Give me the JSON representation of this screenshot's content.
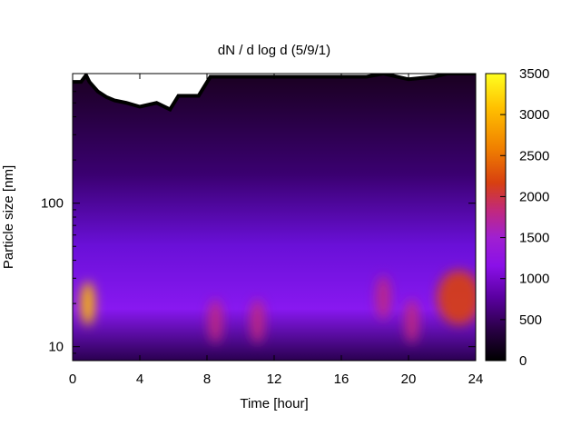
{
  "chart_data": {
    "type": "heatmap",
    "title": "dN / d log d (5/9/1)",
    "xlabel": "Time [hour]",
    "ylabel": "Particle size [nm]",
    "xlim": [
      0,
      24
    ],
    "ylim": [
      8,
      800
    ],
    "yscale": "log",
    "xticks": [
      0,
      4,
      8,
      12,
      16,
      20,
      24
    ],
    "yticks": [
      10,
      100
    ],
    "colorbar": {
      "min": 0,
      "max": 3500,
      "ticks": [
        0,
        500,
        1000,
        1500,
        2000,
        2500,
        3000,
        3500
      ],
      "palette": [
        "#000000",
        "#2a0046",
        "#5a00a0",
        "#8a10e8",
        "#a020d0",
        "#c02880",
        "#d84010",
        "#f08000",
        "#ffc000",
        "#ffff20"
      ]
    },
    "z_description_values": {
      "x_hours": [
        0.9,
        8.5,
        11.0,
        18.5,
        20.2,
        23.0
      ],
      "peak_size_nm": [
        20,
        15,
        15,
        22,
        15,
        22
      ],
      "peak_value": [
        3000,
        1900,
        1800,
        2000,
        2000,
        2500
      ]
    },
    "upper_measurement_limit_nm": [
      [
        0,
        700
      ],
      [
        0.5,
        700
      ],
      [
        0.8,
        780
      ],
      [
        1.0,
        700
      ],
      [
        1.5,
        600
      ],
      [
        2.0,
        550
      ],
      [
        2.5,
        520
      ],
      [
        3.2,
        500
      ],
      [
        4.0,
        470
      ],
      [
        5.0,
        500
      ],
      [
        5.8,
        450
      ],
      [
        6.3,
        560
      ],
      [
        7.5,
        560
      ],
      [
        8.2,
        760
      ],
      [
        12,
        760
      ],
      [
        16,
        760
      ],
      [
        17.5,
        760
      ],
      [
        18.5,
        800
      ],
      [
        20,
        730
      ],
      [
        21.5,
        760
      ],
      [
        22.3,
        800
      ],
      [
        24,
        800
      ]
    ]
  }
}
